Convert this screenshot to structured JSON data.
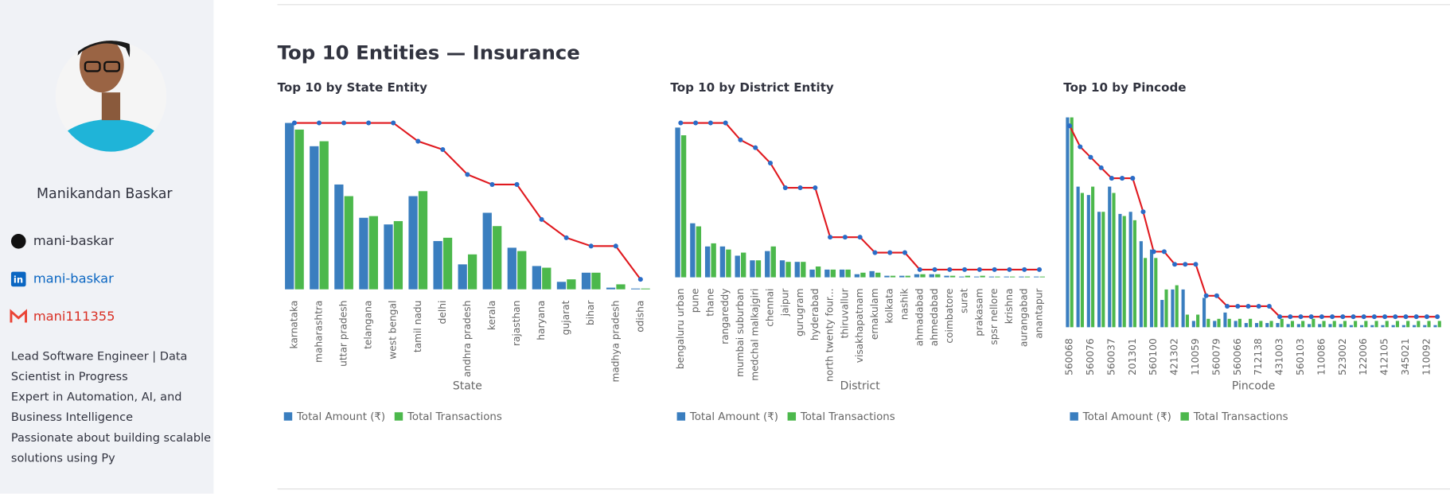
{
  "header": {
    "title": "Top 10 Entities — Insurance"
  },
  "sidebar": {
    "name": "Manikandan Baskar",
    "links": [
      "mani-baskar",
      "mani-baskar",
      "mani111355"
    ],
    "bio": [
      "Lead Software Engineer | Data Scientist in Progress",
      "Expert in Automation, AI, and Business Intelligence",
      "Passionate about building scalable solutions using Py"
    ]
  },
  "chart_data": [
    {
      "type": "bar",
      "title": "Top 10 by State Entity",
      "x_label": "State",
      "ylim": [
        0,
        100
      ],
      "categories": [
        "karnataka",
        "maharashtra",
        "uttar pradesh",
        "telangana",
        "west bengal",
        "tamil nadu",
        "delhi",
        "andhra pradesh",
        "kerala",
        "rajasthan",
        "haryana",
        "gujarat",
        "bihar",
        "madhya pradesh",
        "odisha"
      ],
      "series": [
        {
          "name": "Total Amount (₹)",
          "color": "#3a7ebf",
          "values": [
            100,
            86,
            63,
            43,
            39,
            56,
            29,
            15,
            46,
            25,
            14,
            4.5,
            10,
            1,
            0.5
          ]
        },
        {
          "name": "Total Transactions",
          "color": "#4cb84c",
          "values": [
            96,
            89,
            56,
            44,
            41,
            59,
            31,
            21,
            38,
            23,
            13,
            6,
            10,
            3,
            0.5
          ]
        },
        {
          "type": "line",
          "color": "#e0191f",
          "values": [
            100,
            100,
            100,
            100,
            100,
            89,
            84,
            69,
            63,
            63,
            42,
            31,
            26,
            26,
            6
          ]
        }
      ]
    },
    {
      "type": "bar",
      "title": "Top 10 by District Entity",
      "x_label": "District",
      "ylim": [
        0,
        100
      ],
      "categories": [
        "bengaluru urban",
        "pune",
        "thane",
        "rangareddy",
        "mumbai suburban",
        "medchal malkajgiri",
        "chennai",
        "jaipur",
        "gurugram",
        "hyderabad",
        "north twenty four...",
        "thiruvallur",
        "visakhapatnam",
        "ernakulam",
        "kolkata",
        "nashik",
        "ahmadabad",
        "ahmedabad",
        "coimbatore",
        "surat",
        "prakasam",
        "spsr nellore",
        "krishna",
        "aurangabad",
        "anantapur"
      ],
      "series": [
        {
          "name": "Total Amount (₹)",
          "color": "#3a7ebf",
          "values": [
            97,
            35,
            20,
            20,
            14,
            11,
            17,
            11,
            10,
            5,
            5,
            5,
            2,
            4,
            1,
            1,
            2,
            2,
            1,
            0.5,
            0.5,
            0.5,
            0.5,
            0.5,
            0.5
          ]
        },
        {
          "name": "Total Transactions",
          "color": "#4cb84c",
          "values": [
            92,
            33,
            22,
            18,
            16,
            11,
            20,
            10,
            10,
            7,
            5,
            5,
            3,
            3,
            1,
            1,
            2,
            2,
            1,
            1,
            1,
            0.5,
            0.5,
            0.5,
            0.5
          ]
        },
        {
          "type": "line",
          "color": "#e0191f",
          "values": [
            100,
            100,
            100,
            100,
            89,
            84,
            74,
            58,
            58,
            58,
            26,
            26,
            26,
            16,
            16,
            16,
            5,
            5,
            5,
            5,
            5,
            5,
            5,
            5,
            5
          ]
        }
      ]
    },
    {
      "type": "bar",
      "title": "Top 10 by Pincode",
      "x_label": "Pincode",
      "ylim": [
        0,
        100
      ],
      "categories": [
        "560068",
        null,
        "560076",
        null,
        "560037",
        null,
        "201301",
        null,
        "560100",
        null,
        "421302",
        null,
        "110059",
        null,
        "560079",
        null,
        "560066",
        null,
        "712138",
        null,
        "431003",
        null,
        "560103",
        null,
        "110086",
        null,
        "523002",
        null,
        "122006",
        null,
        "412105",
        null,
        "345021",
        null,
        "110092",
        null
      ],
      "series": [
        {
          "name": "Total Amount (₹)",
          "color": "#3a7ebf",
          "values": [
            100,
            67,
            63,
            55,
            67,
            54,
            55,
            41,
            37,
            13,
            18,
            18,
            3,
            14,
            3,
            7,
            3,
            2,
            2,
            2,
            2,
            1.5,
            1.5,
            1.5,
            1.5,
            1.5,
            1.5,
            1,
            1,
            1,
            1,
            1,
            1,
            1,
            1,
            1
          ]
        },
        {
          "name": "Total Transactions",
          "color": "#4cb84c",
          "values": [
            100,
            64,
            67,
            55,
            64,
            53,
            51,
            33,
            33,
            18,
            20,
            6,
            6,
            4,
            4,
            4,
            4,
            4,
            3,
            3,
            4,
            3,
            3,
            4,
            3,
            3,
            3,
            3,
            3,
            3,
            3,
            3,
            3,
            3,
            3,
            3
          ]
        },
        {
          "type": "line",
          "color": "#e0191f",
          "values": [
            96,
            86,
            81,
            76,
            71,
            71,
            71,
            55,
            36,
            36,
            30,
            30,
            30,
            15,
            15,
            10,
            10,
            10,
            10,
            10,
            5,
            5,
            5,
            5,
            5,
            5,
            5,
            5,
            5,
            5,
            5,
            5,
            5,
            5,
            5,
            5
          ]
        }
      ]
    }
  ]
}
